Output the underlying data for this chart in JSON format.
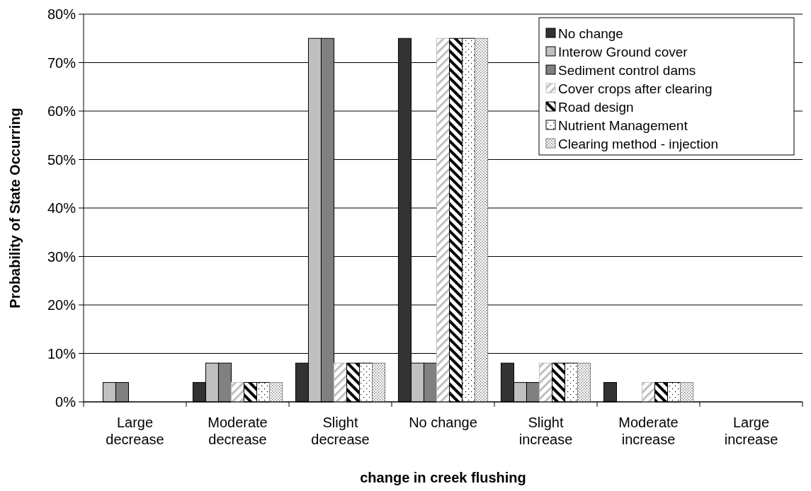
{
  "chart_data": {
    "type": "bar",
    "xlabel": "change in creek flushing",
    "ylabel": "Probability of State Occurring",
    "categories": [
      "Large decrease",
      "Moderate decrease",
      "Slight decrease",
      "No change",
      "Slight increase",
      "Moderate increase",
      "Large increase"
    ],
    "series": [
      {
        "name": "No change",
        "color": "#333333",
        "values": [
          0,
          4,
          8,
          75,
          8,
          4,
          0
        ]
      },
      {
        "name": "Interow Ground cover",
        "color": "#c0c0c0",
        "values": [
          4,
          8,
          75,
          8,
          4,
          0,
          0
        ]
      },
      {
        "name": "Sediment control dams",
        "color": "#808080",
        "values": [
          4,
          8,
          75,
          8,
          4,
          0,
          0
        ]
      },
      {
        "name": "Cover crops after clearing",
        "color": "#c0c0c0",
        "values": [
          0,
          4,
          8,
          75,
          8,
          4,
          0
        ]
      },
      {
        "name": "Road design",
        "color": "#000000",
        "values": [
          0,
          4,
          8,
          75,
          8,
          4,
          0
        ]
      },
      {
        "name": "Nutrient Management",
        "color": "#000000",
        "values": [
          0,
          4,
          8,
          75,
          8,
          4,
          0
        ]
      },
      {
        "name": "Clearing method - injection",
        "color": "#808080",
        "values": [
          0,
          4,
          8,
          75,
          8,
          4,
          0
        ]
      }
    ],
    "ylim": [
      0,
      80
    ],
    "yticks": [
      {
        "value": 0,
        "label": "0%"
      },
      {
        "value": 10,
        "label": "10%"
      },
      {
        "value": 20,
        "label": "20%"
      },
      {
        "value": 30,
        "label": "30%"
      },
      {
        "value": 40,
        "label": "40%"
      },
      {
        "value": 50,
        "label": "50%"
      },
      {
        "value": 60,
        "label": "60%"
      },
      {
        "value": 70,
        "label": "70%"
      },
      {
        "value": 80,
        "label": "80%"
      }
    ],
    "grid": "y",
    "legend": "top right"
  }
}
